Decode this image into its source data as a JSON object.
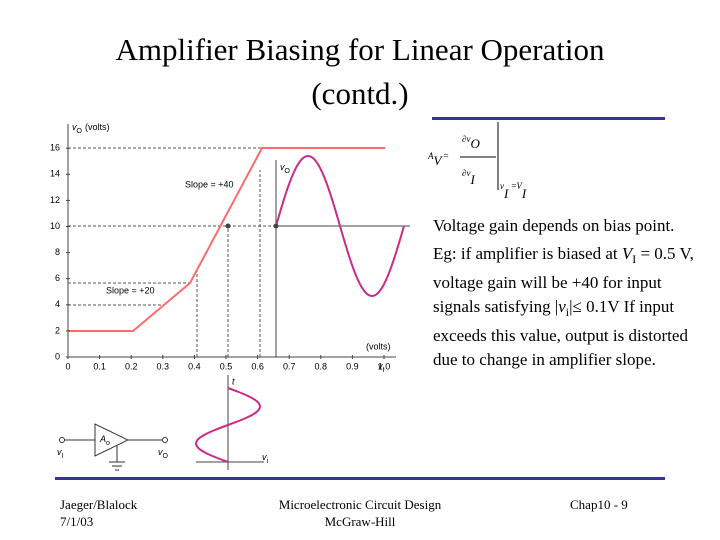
{
  "header": {
    "title_lines": [
      "Amplifier Biasing for Linear Operation",
      "(contd.)"
    ]
  },
  "figure": {
    "y_axis_label": {
      "symbol": "v",
      "subscript": "O",
      "unit": "(volts)"
    },
    "x_axis_label": {
      "unit": "(volts)",
      "symbol": "v",
      "subscript": "I"
    },
    "yticks": [
      "0",
      "2",
      "4",
      "6",
      "8",
      "10",
      "12",
      "14",
      "16"
    ],
    "xticks": [
      "0",
      "0.1",
      "0.2",
      "0.3",
      "0.4",
      "0.5",
      "0.6",
      "0.7",
      "0.8",
      "0.9",
      "1.0"
    ],
    "annotations": [
      "Slope = +40",
      "Slope = +20"
    ],
    "output_label": {
      "symbol": "v",
      "subscript": "O"
    },
    "input_time_label": "t",
    "input_label": {
      "symbol": "v",
      "subscript": "i"
    },
    "amplifier": {
      "gain": {
        "symbol": "A",
        "subscript": "o"
      },
      "input": {
        "symbol": "v",
        "subscript": "I"
      },
      "output": {
        "symbol": "v",
        "subscript": "O"
      }
    }
  },
  "equation": {
    "lhs": "A",
    "lhs_sub": "V",
    "eq": "=",
    "numerator": "∂v",
    "numerator_sub": "O",
    "denominator": "∂v",
    "denominator_sub": "I",
    "eval_var": "v",
    "eval_var_sub": "I",
    "eval_eq": "=",
    "eval_val": "V",
    "eval_val_sub": "I"
  },
  "body": {
    "paragraph_1": "Voltage gain depends on bias point.",
    "paragraph_2": {
      "text_1": "Eg: if amplifier is biased at ",
      "symbol": "V",
      "subscript": "I",
      "text_2": " = 0.5 V, voltage gain will be +40 for input signals satisfying ",
      "condition": {
        "open": "|",
        "symbol": "v",
        "subscript": "i",
        "close": "|",
        "relation": "≤ 0.1V"
      },
      "text_3": " If input exceeds this value, output is distorted due to change in amplifier slope."
    }
  },
  "footer": {
    "left": [
      "Jaeger/Blalock",
      "7/1/03"
    ],
    "center": [
      "Microelectronic Circuit Design",
      "McGraw-Hill"
    ],
    "right": "Chap10 - 9"
  }
}
